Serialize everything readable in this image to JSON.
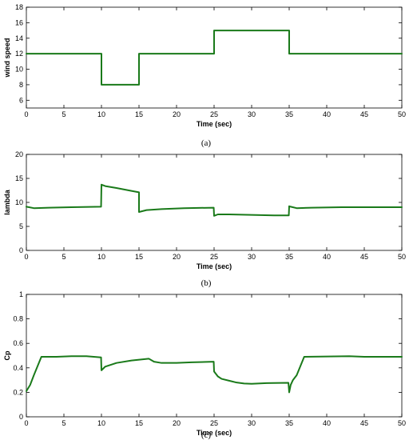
{
  "chart_data": [
    {
      "type": "line",
      "caption": "(a)",
      "xlabel": "Time (sec)",
      "ylabel": "wind speed",
      "xlim": [
        0,
        50
      ],
      "ylim": [
        5,
        18
      ],
      "xticks": [
        0,
        5,
        10,
        15,
        20,
        25,
        30,
        35,
        40,
        45,
        50
      ],
      "yticks": [
        6,
        8,
        10,
        12,
        14,
        16,
        18
      ],
      "grid": false,
      "color": "#1a7a1a",
      "series": [
        {
          "x": [
            0,
            10,
            10,
            15,
            15,
            25,
            25,
            35,
            35,
            50
          ],
          "y": [
            12,
            12,
            8,
            8,
            12,
            12,
            15,
            15,
            12,
            12
          ]
        }
      ]
    },
    {
      "type": "line",
      "caption": "(b)",
      "xlabel": "Time (sec)",
      "ylabel": "lambda",
      "xlim": [
        0,
        50
      ],
      "ylim": [
        0,
        20
      ],
      "xticks": [
        0,
        5,
        10,
        15,
        20,
        25,
        30,
        35,
        40,
        45,
        50
      ],
      "yticks": [
        0,
        5,
        10,
        15,
        20
      ],
      "grid": false,
      "color": "#1a7a1a",
      "series": [
        {
          "x": [
            0,
            1,
            3,
            6,
            9.95,
            10,
            10.5,
            12,
            14,
            15,
            15,
            16,
            18,
            21,
            24.95,
            25,
            25.5,
            27,
            30,
            33,
            34.95,
            35,
            35.2,
            36,
            38,
            42,
            50
          ],
          "y": [
            9.1,
            8.8,
            8.9,
            9.0,
            9.1,
            13.7,
            13.4,
            13.0,
            12.4,
            12.1,
            8.0,
            8.4,
            8.6,
            8.8,
            8.9,
            7.2,
            7.5,
            7.5,
            7.4,
            7.3,
            7.3,
            9.2,
            9.1,
            8.8,
            8.9,
            9.0,
            9.0
          ]
        }
      ]
    },
    {
      "type": "line",
      "caption": "(c)",
      "xlabel": "Time (sec)",
      "ylabel": "Cp",
      "xlim": [
        0,
        50
      ],
      "ylim": [
        0,
        1
      ],
      "xticks": [
        0,
        5,
        10,
        15,
        20,
        25,
        30,
        35,
        40,
        45,
        50
      ],
      "yticks": [
        0,
        0.2,
        0.4,
        0.6,
        0.8,
        1
      ],
      "grid": false,
      "color": "#1a7a1a",
      "series": [
        {
          "x": [
            0,
            0.5,
            1,
            2,
            4,
            6,
            8,
            9.95,
            10,
            10.5,
            12,
            14,
            16.3,
            17,
            18,
            20,
            22,
            24.95,
            25,
            25.5,
            26,
            27,
            28,
            29,
            30,
            32,
            34.9,
            35,
            35.2,
            35.5,
            36,
            37,
            40,
            43,
            45,
            50
          ],
          "y": [
            0.21,
            0.26,
            0.34,
            0.49,
            0.49,
            0.495,
            0.495,
            0.485,
            0.38,
            0.41,
            0.44,
            0.46,
            0.475,
            0.45,
            0.44,
            0.44,
            0.445,
            0.45,
            0.37,
            0.33,
            0.31,
            0.295,
            0.28,
            0.272,
            0.27,
            0.275,
            0.278,
            0.2,
            0.26,
            0.3,
            0.34,
            0.49,
            0.493,
            0.495,
            0.49,
            0.49
          ]
        }
      ]
    }
  ]
}
